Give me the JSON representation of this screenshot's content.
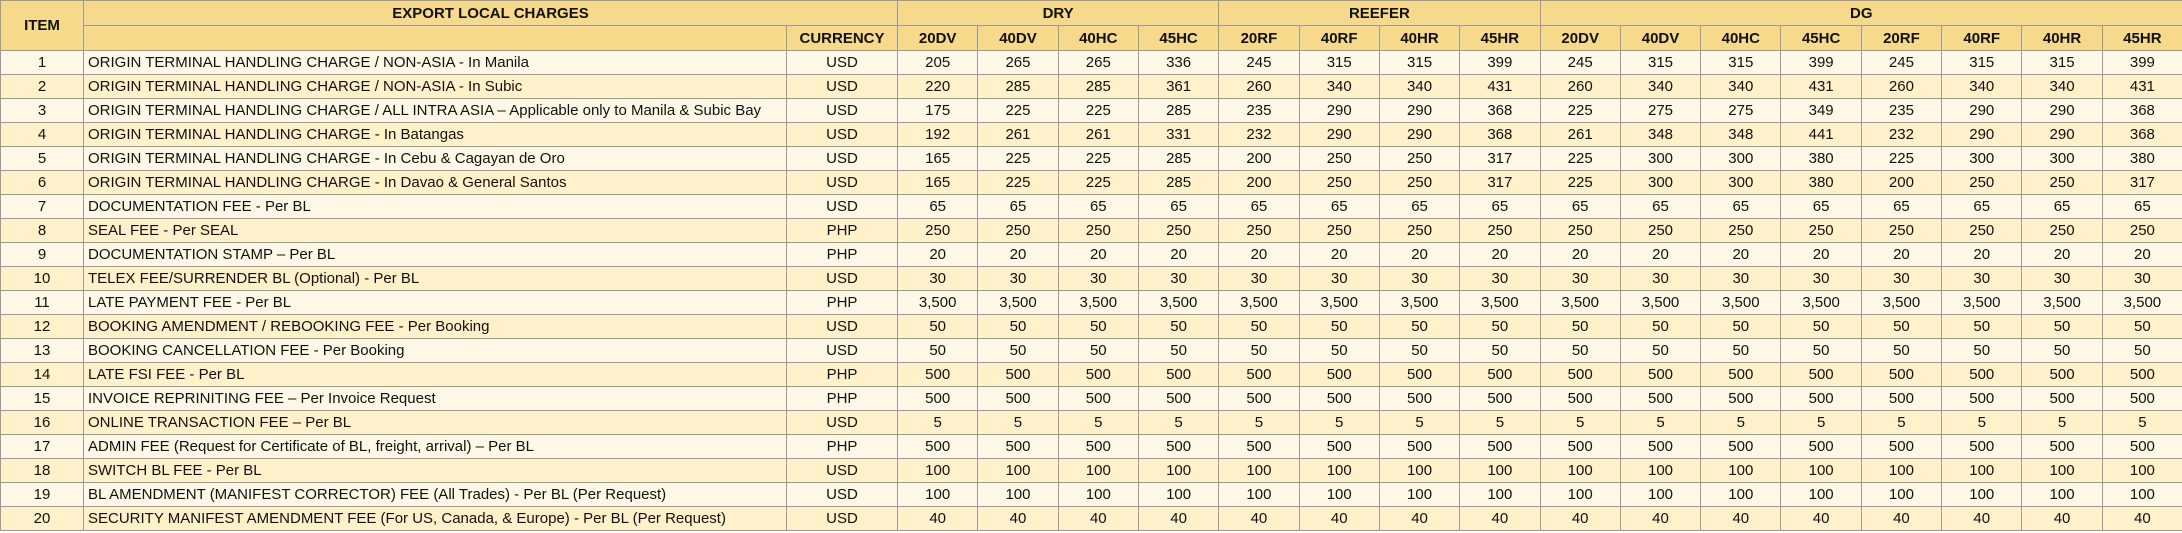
{
  "header": {
    "item": "ITEM",
    "charges": "EXPORT LOCAL CHARGES",
    "currency": "CURRENCY",
    "groups": [
      {
        "name": "DRY",
        "columns": [
          "20DV",
          "40DV",
          "40HC",
          "45HC"
        ]
      },
      {
        "name": "REEFER",
        "columns": [
          "20RF",
          "40RF",
          "40HR",
          "45HR"
        ]
      },
      {
        "name": "DG",
        "columns": [
          "20DV",
          "40DV",
          "40HC",
          "45HC",
          "20RF",
          "40RF",
          "40HR",
          "45HR"
        ]
      }
    ]
  },
  "table": {
    "rows": [
      [
        1,
        "ORIGIN TERMINAL HANDLING CHARGE / NON-ASIA - In Manila",
        "USD",
        205,
        265,
        265,
        336,
        245,
        315,
        315,
        399,
        245,
        315,
        315,
        399,
        245,
        315,
        315,
        399
      ],
      [
        2,
        "ORIGIN TERMINAL HANDLING CHARGE / NON-ASIA - In Subic",
        "USD",
        220,
        285,
        285,
        361,
        260,
        340,
        340,
        431,
        260,
        340,
        340,
        431,
        260,
        340,
        340,
        431
      ],
      [
        3,
        "ORIGIN TERMINAL HANDLING CHARGE / ALL INTRA ASIA – Applicable only to Manila & Subic Bay",
        "USD",
        175,
        225,
        225,
        285,
        235,
        290,
        290,
        368,
        225,
        275,
        275,
        349,
        235,
        290,
        290,
        368
      ],
      [
        4,
        "ORIGIN TERMINAL HANDLING CHARGE - In Batangas",
        "USD",
        192,
        261,
        261,
        331,
        232,
        290,
        290,
        368,
        261,
        348,
        348,
        441,
        232,
        290,
        290,
        368
      ],
      [
        5,
        "ORIGIN TERMINAL HANDLING CHARGE - In Cebu & Cagayan de Oro",
        "USD",
        165,
        225,
        225,
        285,
        200,
        250,
        250,
        317,
        225,
        300,
        300,
        380,
        225,
        300,
        300,
        380
      ],
      [
        6,
        "ORIGIN TERMINAL HANDLING CHARGE - In Davao & General Santos",
        "USD",
        165,
        225,
        225,
        285,
        200,
        250,
        250,
        317,
        225,
        300,
        300,
        380,
        200,
        250,
        250,
        317
      ],
      [
        7,
        "DOCUMENTATION FEE - Per BL",
        "USD",
        65,
        65,
        65,
        65,
        65,
        65,
        65,
        65,
        65,
        65,
        65,
        65,
        65,
        65,
        65,
        65
      ],
      [
        8,
        "SEAL FEE - Per SEAL",
        "PHP",
        250,
        250,
        250,
        250,
        250,
        250,
        250,
        250,
        250,
        250,
        250,
        250,
        250,
        250,
        250,
        250
      ],
      [
        9,
        "DOCUMENTATION STAMP – Per BL",
        "PHP",
        20,
        20,
        20,
        20,
        20,
        20,
        20,
        20,
        20,
        20,
        20,
        20,
        20,
        20,
        20,
        20
      ],
      [
        10,
        "TELEX FEE/SURRENDER BL (Optional) - Per BL",
        "USD",
        30,
        30,
        30,
        30,
        30,
        30,
        30,
        30,
        30,
        30,
        30,
        30,
        30,
        30,
        30,
        30
      ],
      [
        11,
        "LATE PAYMENT FEE - Per BL",
        "PHP",
        "3,500",
        "3,500",
        "3,500",
        "3,500",
        "3,500",
        "3,500",
        "3,500",
        "3,500",
        "3,500",
        "3,500",
        "3,500",
        "3,500",
        "3,500",
        "3,500",
        "3,500",
        "3,500"
      ],
      [
        12,
        "BOOKING AMENDMENT / REBOOKING FEE - Per Booking",
        "USD",
        50,
        50,
        50,
        50,
        50,
        50,
        50,
        50,
        50,
        50,
        50,
        50,
        50,
        50,
        50,
        50
      ],
      [
        13,
        "BOOKING CANCELLATION FEE - Per Booking",
        "USD",
        50,
        50,
        50,
        50,
        50,
        50,
        50,
        50,
        50,
        50,
        50,
        50,
        50,
        50,
        50,
        50
      ],
      [
        14,
        "LATE FSI FEE - Per BL",
        "PHP",
        500,
        500,
        500,
        500,
        500,
        500,
        500,
        500,
        500,
        500,
        500,
        500,
        500,
        500,
        500,
        500
      ],
      [
        15,
        "INVOICE REPRINITING FEE – Per Invoice Request",
        "PHP",
        500,
        500,
        500,
        500,
        500,
        500,
        500,
        500,
        500,
        500,
        500,
        500,
        500,
        500,
        500,
        500
      ],
      [
        16,
        "ONLINE TRANSACTION FEE – Per BL",
        "USD",
        5,
        5,
        5,
        5,
        5,
        5,
        5,
        5,
        5,
        5,
        5,
        5,
        5,
        5,
        5,
        5
      ],
      [
        17,
        "ADMIN FEE (Request for Certificate of BL, freight, arrival) – Per BL",
        "PHP",
        500,
        500,
        500,
        500,
        500,
        500,
        500,
        500,
        500,
        500,
        500,
        500,
        500,
        500,
        500,
        500
      ],
      [
        18,
        "SWITCH BL FEE - Per BL",
        "USD",
        100,
        100,
        100,
        100,
        100,
        100,
        100,
        100,
        100,
        100,
        100,
        100,
        100,
        100,
        100,
        100
      ],
      [
        19,
        "BL AMENDMENT (MANIFEST CORRECTOR) FEE (All Trades) - Per BL (Per Request)",
        "USD",
        100,
        100,
        100,
        100,
        100,
        100,
        100,
        100,
        100,
        100,
        100,
        100,
        100,
        100,
        100,
        100
      ],
      [
        20,
        "SECURITY MANIFEST AMENDMENT FEE (For US, Canada, & Europe) - Per BL (Per Request)",
        "USD",
        40,
        40,
        40,
        40,
        40,
        40,
        40,
        40,
        40,
        40,
        40,
        40,
        40,
        40,
        40,
        40
      ]
    ]
  }
}
